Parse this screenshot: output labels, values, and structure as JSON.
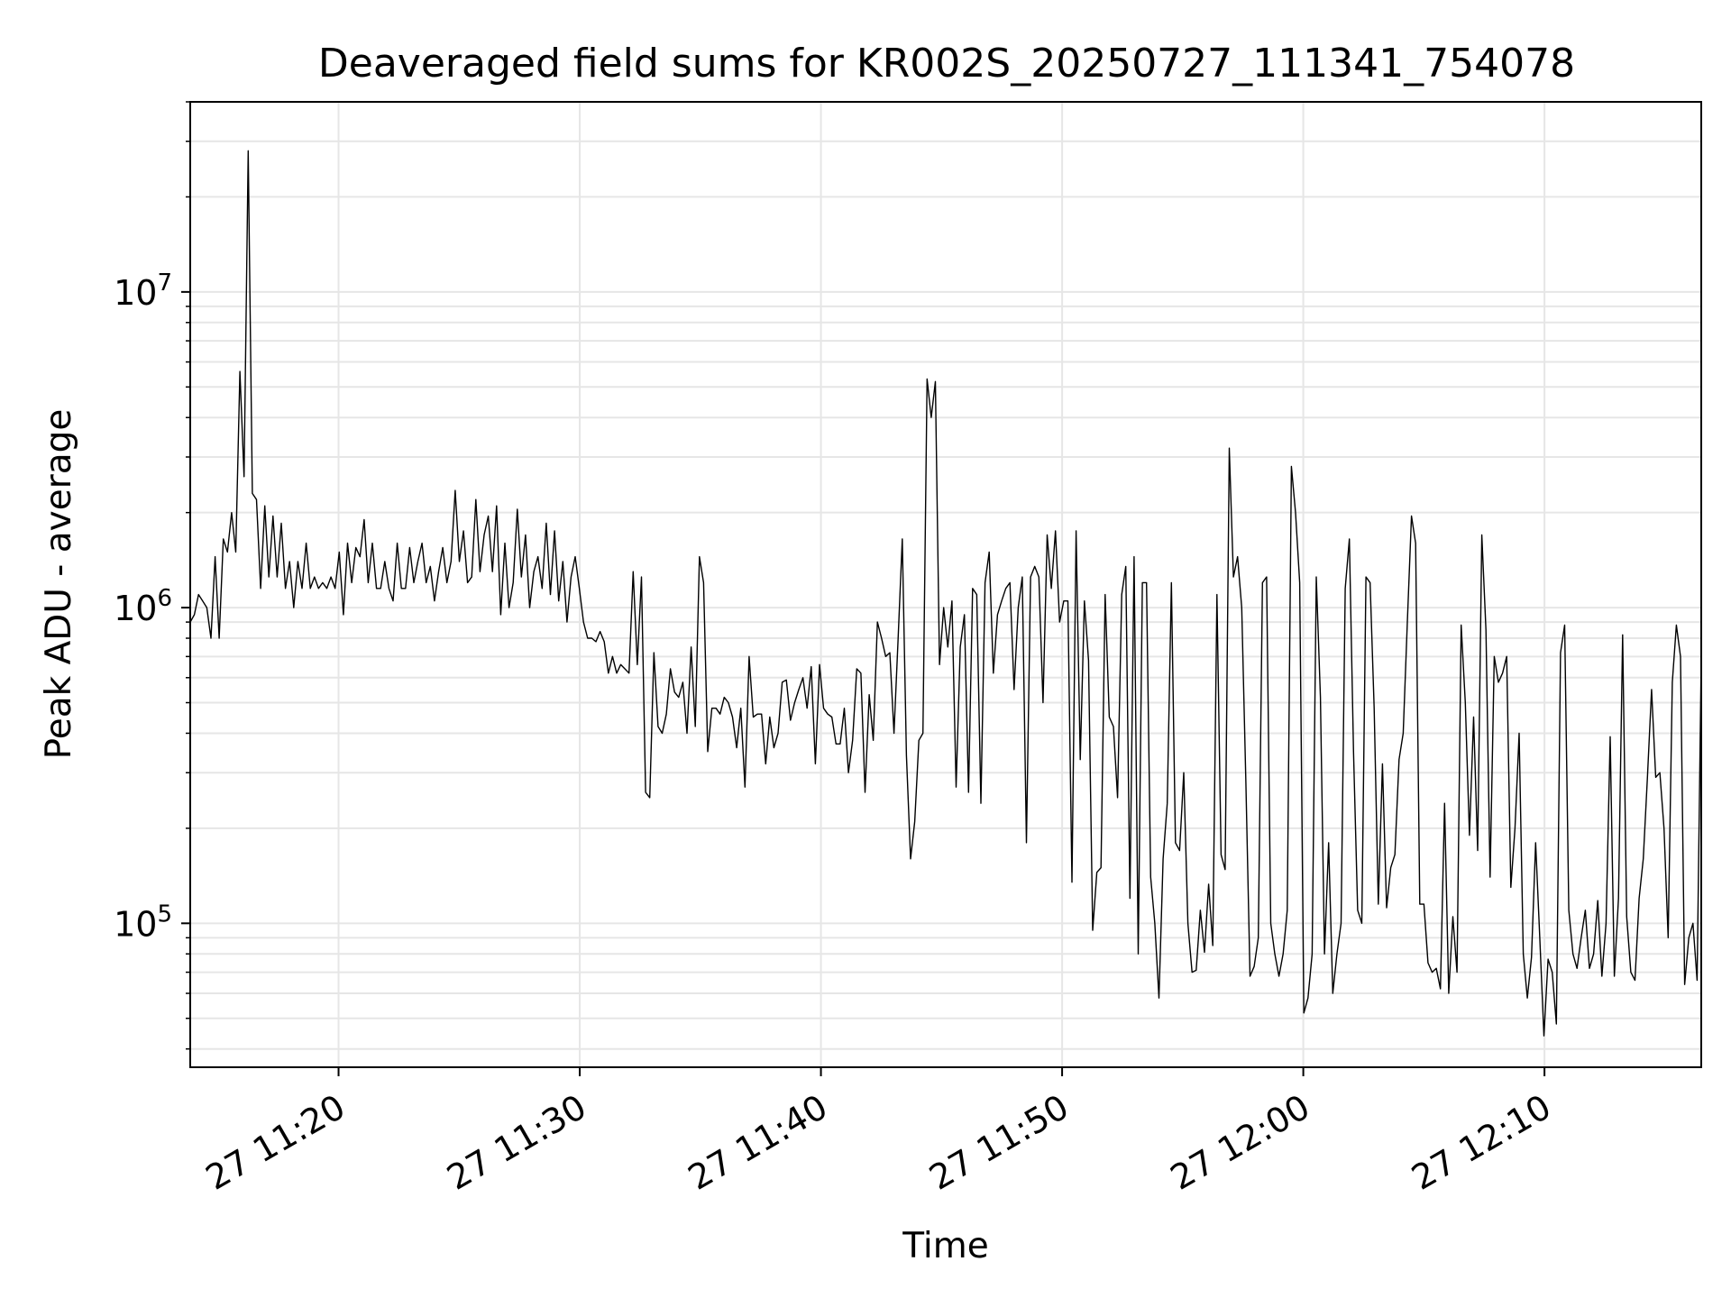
{
  "chart_data": {
    "type": "line",
    "title": "Deaveraged field sums for KR002S_20250727_111341_754078",
    "xlabel": "Time",
    "ylabel": "Peak ADU - average",
    "y_scale": "log",
    "ylim": [
      35000,
      40000000
    ],
    "xlim": [
      "2025-07-27 11:13:51",
      "2025-07-27 12:16:30"
    ],
    "grid": true,
    "line_color": "#000000",
    "grid_color": "#e6e6e6",
    "x_ticks": [
      {
        "time": "2025-07-27 11:20:00",
        "label": "27 11:20"
      },
      {
        "time": "2025-07-27 11:30:00",
        "label": "27 11:30"
      },
      {
        "time": "2025-07-27 11:40:00",
        "label": "27 11:40"
      },
      {
        "time": "2025-07-27 11:50:00",
        "label": "27 11:50"
      },
      {
        "time": "2025-07-27 12:00:00",
        "label": "27 12:00"
      },
      {
        "time": "2025-07-27 12:10:00",
        "label": "27 12:10"
      }
    ],
    "y_ticks": [
      {
        "value": 100000,
        "base": "10",
        "exponent": "5"
      },
      {
        "value": 1000000,
        "base": "10",
        "exponent": "6"
      },
      {
        "value": 10000000,
        "base": "10",
        "exponent": "7"
      }
    ],
    "x_start": "2025-07-27 11:13:51",
    "x_end": "2025-07-27 12:16:30",
    "y": [
      900000,
      950000,
      1100000,
      1050000,
      1000000,
      800000,
      1450000,
      800000,
      1650000,
      1500000,
      2000000,
      1500000,
      5600000,
      2600000,
      28000000,
      2300000,
      2200000,
      1150000,
      2100000,
      1250000,
      1950000,
      1250000,
      1850000,
      1150000,
      1400000,
      1000000,
      1400000,
      1150000,
      1600000,
      1150000,
      1250000,
      1150000,
      1200000,
      1150000,
      1250000,
      1150000,
      1500000,
      950000,
      1600000,
      1200000,
      1550000,
      1450000,
      1900000,
      1200000,
      1600000,
      1150000,
      1150000,
      1400000,
      1150000,
      1050000,
      1600000,
      1150000,
      1150000,
      1550000,
      1200000,
      1400000,
      1600000,
      1200000,
      1350000,
      1050000,
      1300000,
      1550000,
      1200000,
      1400000,
      2350000,
      1400000,
      1750000,
      1200000,
      1250000,
      2200000,
      1300000,
      1700000,
      1950000,
      1300000,
      2100000,
      950000,
      1600000,
      1000000,
      1200000,
      2050000,
      1250000,
      1700000,
      1000000,
      1300000,
      1450000,
      1150000,
      1850000,
      1100000,
      1750000,
      1050000,
      1400000,
      900000,
      1250000,
      1450000,
      1150000,
      900000,
      800000,
      800000,
      780000,
      840000,
      780000,
      620000,
      700000,
      620000,
      660000,
      640000,
      620000,
      1300000,
      660000,
      1250000,
      260000,
      250000,
      720000,
      420000,
      400000,
      460000,
      640000,
      540000,
      520000,
      580000,
      400000,
      750000,
      420000,
      1450000,
      1200000,
      350000,
      480000,
      480000,
      460000,
      520000,
      500000,
      450000,
      360000,
      480000,
      270000,
      700000,
      450000,
      460000,
      460000,
      320000,
      450000,
      360000,
      400000,
      580000,
      590000,
      440000,
      500000,
      550000,
      600000,
      480000,
      650000,
      320000,
      660000,
      480000,
      460000,
      450000,
      370000,
      370000,
      480000,
      300000,
      380000,
      640000,
      620000,
      260000,
      530000,
      380000,
      900000,
      800000,
      700000,
      720000,
      400000,
      800000,
      1650000,
      340000,
      160000,
      210000,
      380000,
      400000,
      5300000,
      4000000,
      5200000,
      660000,
      1000000,
      750000,
      1050000,
      270000,
      750000,
      950000,
      260000,
      1150000,
      1100000,
      240000,
      1200000,
      1500000,
      620000,
      950000,
      1050000,
      1150000,
      1200000,
      550000,
      1000000,
      1250000,
      180000,
      1250000,
      1350000,
      1250000,
      500000,
      1700000,
      1150000,
      1750000,
      900000,
      1050000,
      1050000,
      135000,
      1750000,
      330000,
      1050000,
      680000,
      95000,
      145000,
      150000,
      1100000,
      450000,
      420000,
      250000,
      1100000,
      1350000,
      120000,
      1450000,
      80000,
      1200000,
      1200000,
      140000,
      100000,
      58000,
      160000,
      240000,
      1200000,
      180000,
      170000,
      300000,
      100000,
      70000,
      71000,
      110000,
      81000,
      133000,
      85000,
      1100000,
      165000,
      148000,
      3200000,
      1250000,
      1450000,
      1000000,
      280000,
      68000,
      73000,
      90000,
      1200000,
      1250000,
      100000,
      80000,
      68000,
      80000,
      110000,
      2800000,
      2000000,
      1200000,
      52000,
      58000,
      80000,
      1250000,
      520000,
      80000,
      180000,
      60000,
      80000,
      100000,
      1150000,
      1650000,
      350000,
      110000,
      100000,
      1250000,
      1200000,
      480000,
      115000,
      320000,
      112000,
      150000,
      165000,
      330000,
      400000,
      900000,
      1950000,
      1600000,
      115000,
      115000,
      75000,
      70000,
      72000,
      62000,
      240000,
      60000,
      105000,
      70000,
      880000,
      500000,
      190000,
      450000,
      170000,
      1700000,
      850000,
      140000,
      700000,
      580000,
      620000,
      700000,
      130000,
      200000,
      400000,
      80000,
      58000,
      78000,
      180000,
      90000,
      44000,
      77000,
      70000,
      48000,
      720000,
      880000,
      110000,
      80000,
      72000,
      90000,
      110000,
      72000,
      80000,
      118000,
      68000,
      100000,
      390000,
      68000,
      120000,
      820000,
      105000,
      70000,
      66000,
      120000,
      160000,
      290000,
      550000,
      290000,
      300000,
      200000,
      90000,
      580000,
      880000,
      700000,
      64000,
      90000,
      100000,
      66000,
      700000
    ]
  }
}
